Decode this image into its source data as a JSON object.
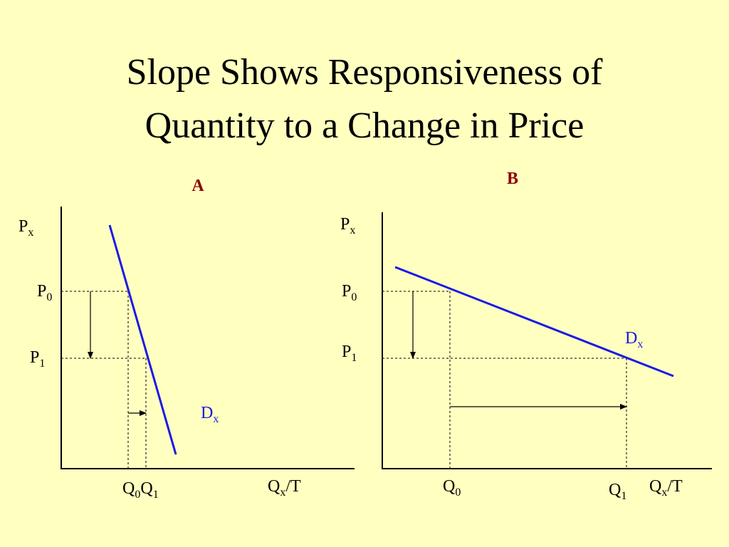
{
  "title": [
    "Slope Shows Responsiveness of",
    "Quantity to a Change in Price"
  ],
  "panels": [
    {
      "label": "A",
      "y_axis": {
        "main": "P",
        "sub": "x"
      },
      "x_axis": {
        "main": "Q",
        "sub": "x",
        "suffix": "/T"
      },
      "p0": {
        "main": "P",
        "sub": "0"
      },
      "p1": {
        "main": "P",
        "sub": "1"
      },
      "q0": {
        "main": "Q",
        "sub": "0"
      },
      "q1": {
        "main": "Q",
        "sub": "1"
      },
      "demand": {
        "main": "D",
        "sub": "x"
      }
    },
    {
      "label": "B",
      "y_axis": {
        "main": "P",
        "sub": "x"
      },
      "x_axis": {
        "main": "Q",
        "sub": "x",
        "suffix": "/T"
      },
      "p0": {
        "main": "P",
        "sub": "0"
      },
      "p1": {
        "main": "P",
        "sub": "1"
      },
      "q0": {
        "main": "Q",
        "sub": "0"
      },
      "q1": {
        "main": "Q",
        "sub": "1"
      },
      "demand": {
        "main": "D",
        "sub": "x"
      }
    }
  ]
}
